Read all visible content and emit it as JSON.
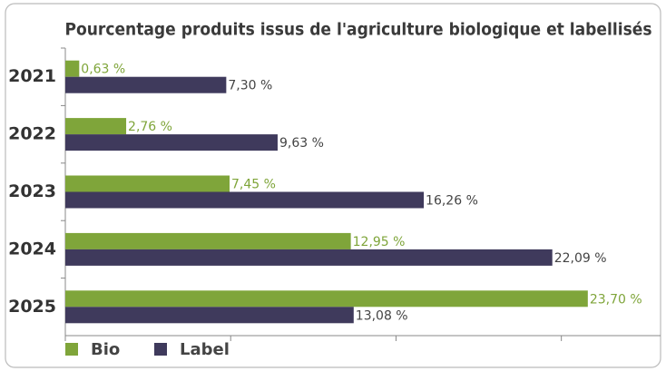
{
  "chart_data": {
    "type": "bar",
    "orientation": "horizontal",
    "title": "Pourcentage produits issus de l'agriculture biologique et labellisés",
    "categories": [
      "2021",
      "2022",
      "2023",
      "2024",
      "2025"
    ],
    "series": [
      {
        "name": "Bio",
        "color": "#7fa53a",
        "values": [
          0.63,
          2.76,
          7.45,
          12.95,
          23.7
        ],
        "value_labels": [
          "0,63 %",
          "2,76 %",
          "7,45 %",
          "12,95 %",
          "23,70 %"
        ]
      },
      {
        "name": "Label",
        "color": "#3f3a5c",
        "values": [
          7.3,
          9.63,
          16.26,
          22.09,
          13.08
        ],
        "value_labels": [
          "7,30 %",
          "9,63 %",
          "16,26 %",
          "22,09 %",
          "13,08 %"
        ]
      }
    ],
    "xlim": [
      0,
      27
    ],
    "xticks": [
      0,
      7.5,
      15,
      22.5
    ],
    "legend": "bottom-left"
  }
}
